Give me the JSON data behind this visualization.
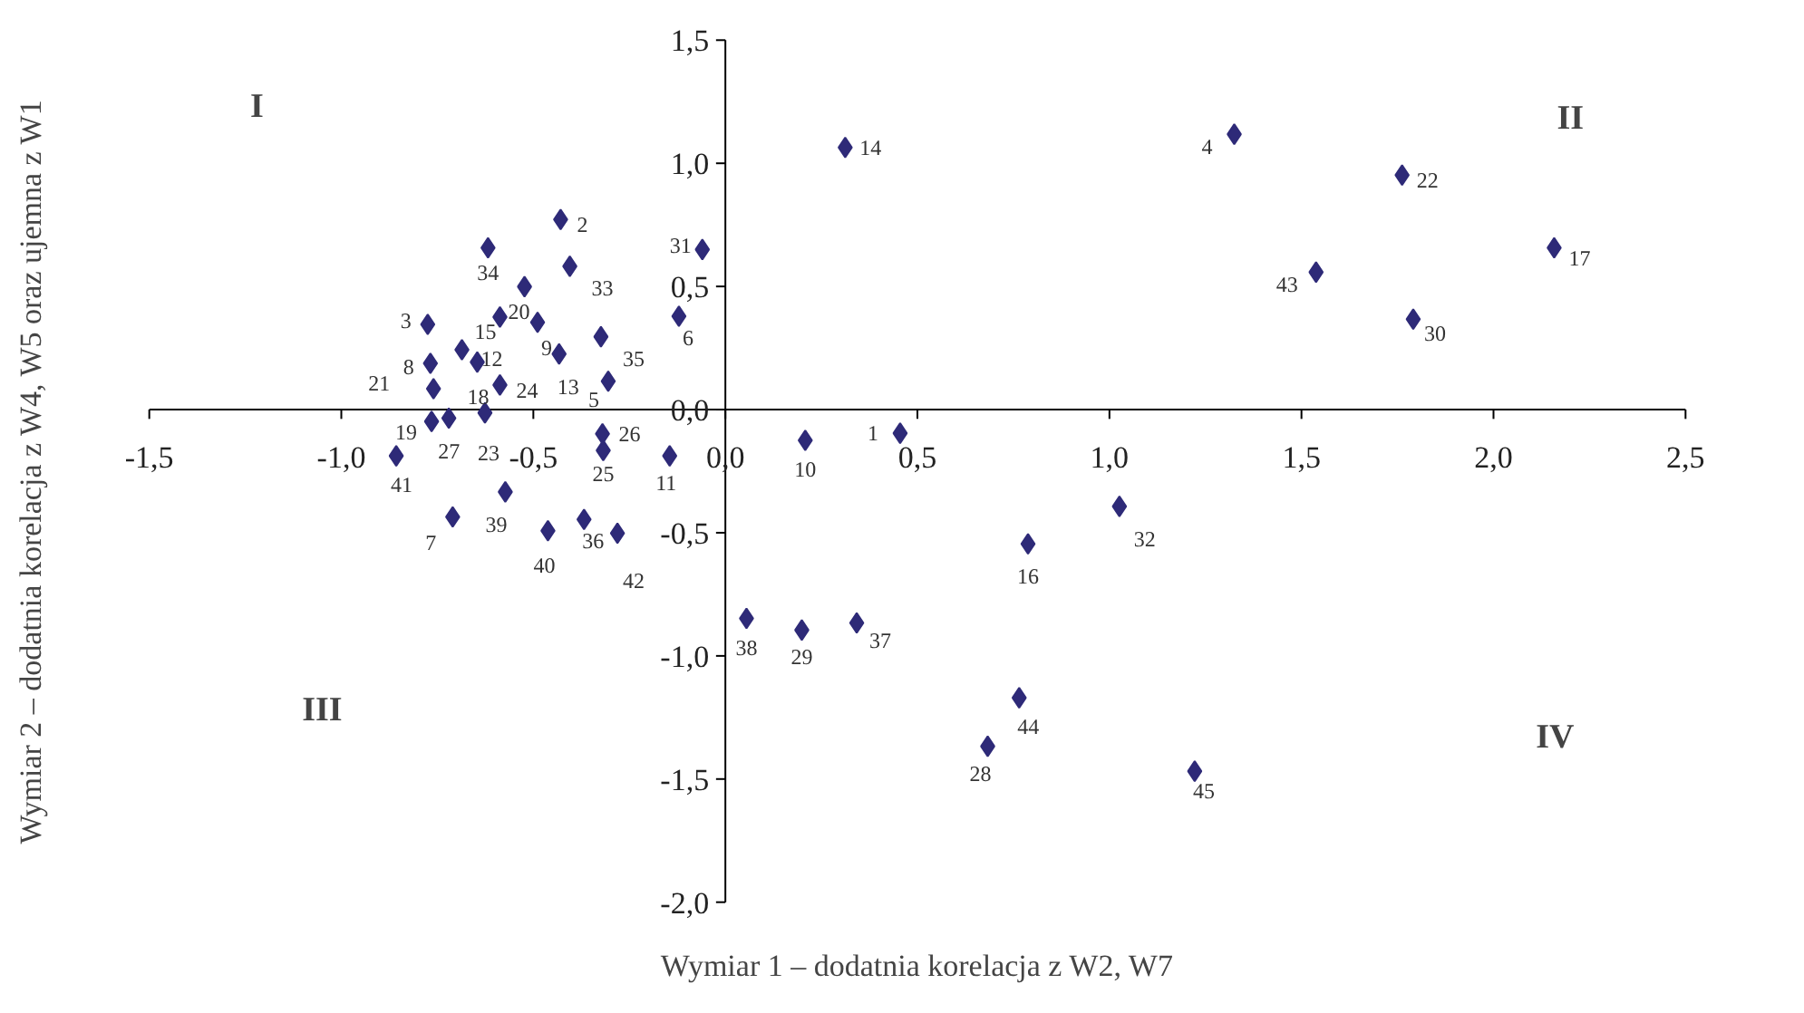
{
  "chart_data": {
    "type": "scatter",
    "xlabel": "Wymiar 1 – dodatnia korelacja z W2, W7",
    "ylabel": "Wymiar 2 – dodatnia korelacja z W4, W5 oraz ujemna z W1",
    "annotations": [
      "I",
      "II",
      "III",
      "IV",
      {
        "text": "1",
        "x": 0.455,
        "y": -0.096
      },
      {
        "text": "2",
        "x": -0.429,
        "y": 0.772
      },
      {
        "text": "3",
        "x": -0.775,
        "y": 0.346
      },
      {
        "text": "4",
        "x": 1.325,
        "y": 1.118
      },
      {
        "text": "5",
        "x": -0.305,
        "y": 0.115
      },
      {
        "text": "6",
        "x": -0.121,
        "y": 0.379
      },
      {
        "text": "7",
        "x": -0.71,
        "y": -0.436
      },
      {
        "text": "8",
        "x": -0.768,
        "y": 0.188
      },
      {
        "text": "9",
        "x": -0.489,
        "y": 0.354
      },
      {
        "text": "10",
        "x": 0.208,
        "y": -0.125
      },
      {
        "text": "11",
        "x": -0.145,
        "y": -0.188
      },
      {
        "text": "12",
        "x": -0.646,
        "y": 0.193
      },
      {
        "text": "13",
        "x": -0.433,
        "y": 0.226
      },
      {
        "text": "14",
        "x": 0.312,
        "y": 1.064
      },
      {
        "text": "15",
        "x": -0.587,
        "y": 0.376
      },
      {
        "text": "16",
        "x": 0.788,
        "y": -0.545
      },
      {
        "text": "17",
        "x": 2.158,
        "y": 0.657
      },
      {
        "text": "18",
        "x": -0.686,
        "y": 0.243
      },
      {
        "text": "19",
        "x": -0.765,
        "y": -0.048
      },
      {
        "text": "20",
        "x": -0.523,
        "y": 0.499
      },
      {
        "text": "21",
        "x": -0.76,
        "y": 0.085
      },
      {
        "text": "22",
        "x": 1.762,
        "y": 0.952
      },
      {
        "text": "23",
        "x": -0.626,
        "y": -0.013
      },
      {
        "text": "24",
        "x": -0.587,
        "y": 0.1
      },
      {
        "text": "25",
        "x": -0.318,
        "y": -0.166
      },
      {
        "text": "26",
        "x": -0.32,
        "y": -0.098
      },
      {
        "text": "27",
        "x": -0.72,
        "y": -0.035
      },
      {
        "text": "28",
        "x": 0.683,
        "y": -1.367
      },
      {
        "text": "29",
        "x": 0.199,
        "y": -0.895
      },
      {
        "text": "30",
        "x": 1.791,
        "y": 0.367
      },
      {
        "text": "31",
        "x": -0.06,
        "y": 0.65
      },
      {
        "text": "32",
        "x": 1.026,
        "y": -0.393
      },
      {
        "text": "33",
        "x": -0.405,
        "y": 0.582
      },
      {
        "text": "34",
        "x": -0.618,
        "y": 0.657
      },
      {
        "text": "35",
        "x": -0.324,
        "y": 0.296
      },
      {
        "text": "36",
        "x": -0.368,
        "y": -0.446
      },
      {
        "text": "37",
        "x": 0.342,
        "y": -0.866
      },
      {
        "text": "38",
        "x": 0.055,
        "y": -0.848
      },
      {
        "text": "39",
        "x": -0.573,
        "y": -0.334
      },
      {
        "text": "40",
        "x": -0.462,
        "y": -0.492
      },
      {
        "text": "41",
        "x": -0.857,
        "y": -0.188
      },
      {
        "text": "42",
        "x": -0.281,
        "y": -0.502
      },
      {
        "text": "43",
        "x": 1.538,
        "y": 0.558
      },
      {
        "text": "44",
        "x": 0.765,
        "y": -1.17
      },
      {
        "text": "45",
        "x": 1.222,
        "y": -1.468
      }
    ],
    "xlim": [
      -1.5,
      2.5
    ],
    "ylim": [
      -2.0,
      1.5
    ],
    "xticks": [
      {
        "value": -1.5,
        "label": "-1,5"
      },
      {
        "value": -1.0,
        "label": "-1,0"
      },
      {
        "value": -0.5,
        "label": "-0,5"
      },
      {
        "value": 0,
        "label": "0,0"
      },
      {
        "value": 0.5,
        "label": "0,5"
      },
      {
        "value": 1.0,
        "label": "1,0"
      },
      {
        "value": 1.5,
        "label": "1,5"
      },
      {
        "value": 2.0,
        "label": "2,0"
      },
      {
        "value": 2.5,
        "label": "2,5"
      }
    ],
    "yticks": [
      {
        "value": -2.0,
        "label": "-2,0"
      },
      {
        "value": -1.5,
        "label": "-1,5"
      },
      {
        "value": -1.0,
        "label": "-1,0"
      },
      {
        "value": -0.5,
        "label": "-0,5"
      },
      {
        "value": 0,
        "label": "0,0"
      },
      {
        "value": 0.5,
        "label": "0,5"
      },
      {
        "value": 1.0,
        "label": "1,0"
      },
      {
        "value": 1.5,
        "label": "1,5"
      }
    ],
    "grid": false,
    "legend": false,
    "marker": "diamond",
    "series": [
      {
        "color": "#2e2a78",
        "x": [
          0.455,
          -0.429,
          -0.775,
          1.325,
          -0.305,
          -0.121,
          -0.71,
          -0.768,
          -0.489,
          0.208,
          -0.145,
          -0.646,
          -0.433,
          0.312,
          -0.587,
          0.788,
          2.158,
          -0.686,
          -0.765,
          -0.523,
          -0.76,
          1.762,
          -0.626,
          -0.587,
          -0.318,
          -0.32,
          -0.72,
          0.683,
          0.199,
          1.791,
          -0.06,
          1.026,
          -0.405,
          -0.618,
          -0.324,
          -0.368,
          0.342,
          0.055,
          -0.573,
          -0.462,
          -0.857,
          -0.281,
          1.538,
          0.765,
          1.222
        ],
        "values": [
          -0.096,
          0.772,
          0.346,
          1.118,
          0.115,
          0.379,
          -0.436,
          0.188,
          0.354,
          -0.125,
          -0.188,
          0.193,
          0.226,
          1.064,
          0.376,
          -0.545,
          0.657,
          0.243,
          -0.048,
          0.499,
          0.085,
          0.952,
          -0.013,
          0.1,
          -0.166,
          -0.098,
          -0.035,
          -1.367,
          -0.895,
          0.367,
          0.65,
          -0.393,
          0.582,
          0.657,
          0.296,
          -0.446,
          -0.866,
          -0.848,
          -0.334,
          -0.492,
          -0.188,
          -0.502,
          0.558,
          -1.17,
          -1.468
        ]
      }
    ]
  }
}
